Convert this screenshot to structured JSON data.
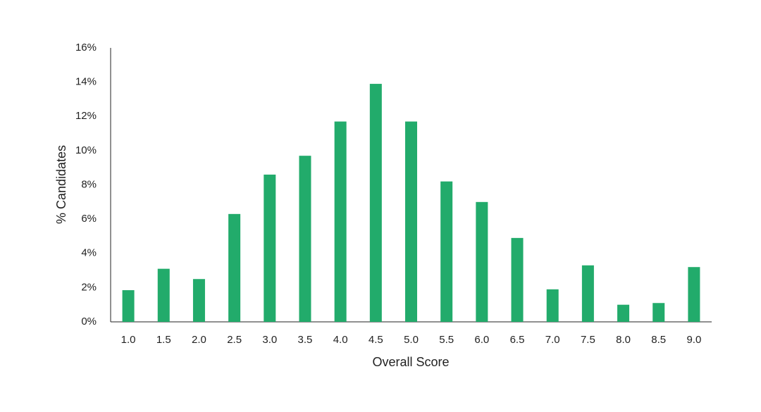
{
  "chart_data": {
    "type": "bar",
    "x_label": "Overall Score",
    "y_label": "% Candidates",
    "categories": [
      "1.0",
      "1.5",
      "2.0",
      "2.5",
      "3.0",
      "3.5",
      "4.0",
      "4.5",
      "5.0",
      "5.5",
      "6.0",
      "6.5",
      "7.0",
      "7.5",
      "8.0",
      "8.5",
      "9.0"
    ],
    "values": [
      1.85,
      3.1,
      2.5,
      6.3,
      8.6,
      9.7,
      11.7,
      13.9,
      11.7,
      8.2,
      7.0,
      4.9,
      1.9,
      3.3,
      1.0,
      1.1,
      3.2
    ],
    "color": "#22ab6b",
    "ylim": [
      0,
      16
    ],
    "yticks": [
      {
        "value": 0,
        "label": "0%"
      },
      {
        "value": 2,
        "label": "2%"
      },
      {
        "value": 4,
        "label": "4%"
      },
      {
        "value": 6,
        "label": "6%"
      },
      {
        "value": 8,
        "label": "8%"
      },
      {
        "value": 10,
        "label": "10%"
      },
      {
        "value": 12,
        "label": "12%"
      },
      {
        "value": 14,
        "label": "14%"
      },
      {
        "value": 16,
        "label": "16%"
      }
    ],
    "grid": false
  }
}
